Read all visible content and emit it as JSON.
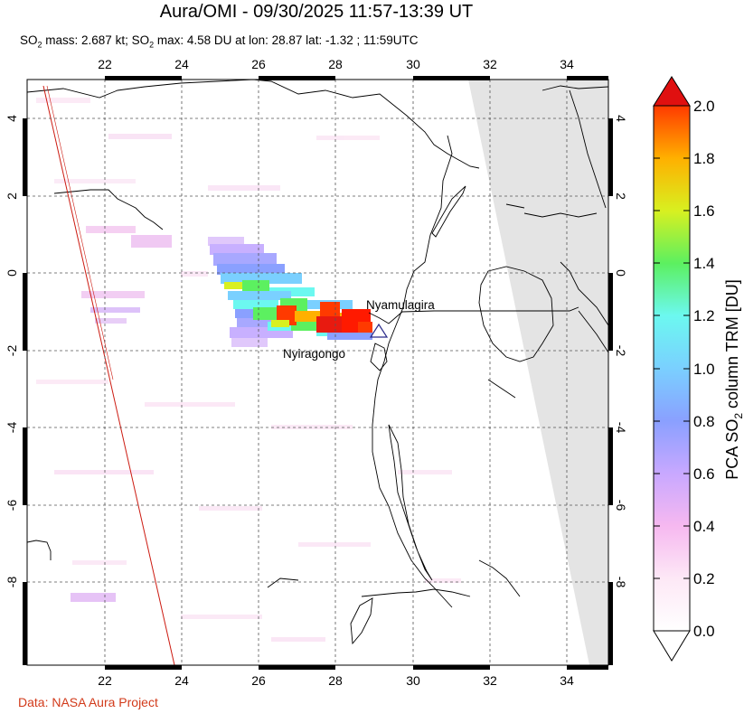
{
  "title": "Aura/OMI - 09/30/2025 11:57-13:39 UT",
  "subtitle": {
    "p1": "SO",
    "p1_sub": "2",
    "p2": " mass: 2.687 kt; SO",
    "p2_sub": "2",
    "p3": " max: 4.58 DU at lon: 28.87 lat: -1.32 ; 11:59UTC"
  },
  "credit": "Data: NASA Aura Project",
  "map": {
    "lon_range": [
      20,
      35
    ],
    "lat_range": [
      -10,
      5
    ],
    "lon_ticks": [
      "22",
      "24",
      "26",
      "28",
      "30",
      "32",
      "34"
    ],
    "lat_ticks": [
      "4",
      "2",
      "0",
      "-2",
      "-4",
      "-6",
      "-8"
    ],
    "grid": "dashed",
    "no_data_color": "#e4e4e4"
  },
  "volcanoes": [
    {
      "name": "Nyamulagira",
      "lon": 29.2,
      "lat": -1.41
    },
    {
      "name": "Nyiragongo",
      "lon": 29.25,
      "lat": -1.52
    }
  ],
  "colorbar": {
    "label_parts": [
      "PCA SO",
      "2",
      " column TRM [DU]"
    ],
    "min": 0.0,
    "max": 2.0,
    "ticks": [
      "0.0",
      "0.2",
      "0.4",
      "0.6",
      "0.8",
      "1.0",
      "1.2",
      "1.4",
      "1.6",
      "1.8",
      "2.0"
    ],
    "colors": [
      "#ffffff",
      "#fde8f6",
      "#f6b8f0",
      "#c8a8ff",
      "#8aa0ff",
      "#7ad0ff",
      "#6cf8f0",
      "#5cf060",
      "#d8f020",
      "#ffb000",
      "#ff3a00",
      "#e01010"
    ]
  }
}
